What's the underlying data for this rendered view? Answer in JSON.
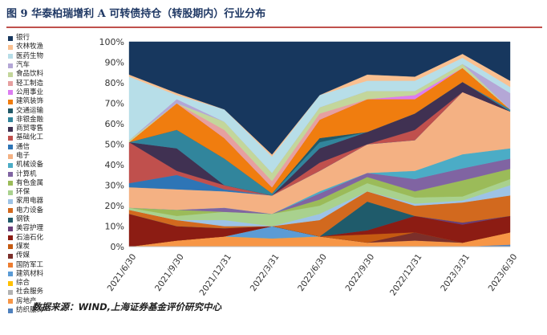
{
  "figure": {
    "title": "图 9 华泰柏瑞增利 A 可转债持仓（转股期内）行业分布",
    "source": "数据来源：WIND,上海证券基金评价研究中心"
  },
  "colors": {
    "title": "#1f3864",
    "rule": "#c0504d"
  },
  "chart_data": {
    "type": "area",
    "stacked": true,
    "normalized": true,
    "x": [
      "2021/6/30",
      "2021/9/30",
      "2021/12/31",
      "2022/3/31",
      "2022/6/30",
      "2022/9/30",
      "2022/12/31",
      "2023/3/31",
      "2023/6/30"
    ],
    "ylim": [
      0,
      100
    ],
    "yticks": [
      "0%",
      "10%",
      "20%",
      "30%",
      "40%",
      "50%",
      "60%",
      "70%",
      "80%",
      "90%",
      "100%"
    ],
    "legend_position": "left",
    "grid": false,
    "series": [
      {
        "name": "纺织服饰",
        "color": "#4f81bd",
        "values": [
          0,
          0,
          0,
          0,
          0,
          0,
          0,
          0,
          1
        ]
      },
      {
        "name": "房地产",
        "color": "#f79646",
        "values": [
          0,
          3,
          5,
          4,
          5,
          2,
          3,
          2,
          6
        ]
      },
      {
        "name": "社会服务",
        "color": "#b2b2b2",
        "values": [
          0,
          0,
          0,
          0,
          0,
          0,
          0,
          0,
          0
        ]
      },
      {
        "name": "综合",
        "color": "#ffc000",
        "values": [
          0,
          0,
          0,
          0,
          0,
          0,
          0,
          0,
          0
        ]
      },
      {
        "name": "建筑材料",
        "color": "#5b9bd5",
        "values": [
          0,
          0,
          0,
          6,
          0,
          0,
          0,
          0,
          0
        ]
      },
      {
        "name": "国防军工",
        "color": "#ed7d31",
        "values": [
          0,
          0,
          0,
          0,
          0,
          0,
          0,
          0,
          0
        ]
      },
      {
        "name": "传媒",
        "color": "#7b2f2a",
        "values": [
          0,
          0,
          0,
          0,
          0,
          0,
          4,
          0,
          0
        ]
      },
      {
        "name": "煤炭",
        "color": "#c55a11",
        "values": [
          0,
          0,
          0,
          0,
          0,
          4,
          0,
          0,
          0
        ]
      },
      {
        "name": "石油石化",
        "color": "#8c1c13",
        "values": [
          16,
          7,
          4,
          0,
          0,
          2,
          8,
          9,
          8
        ]
      },
      {
        "name": "美容护理",
        "color": "#6a3d7a",
        "values": [
          0,
          0,
          0,
          0,
          0,
          0,
          0,
          1,
          0
        ]
      },
      {
        "name": "钢铁",
        "color": "#1f5b6b",
        "values": [
          0,
          0,
          0,
          0,
          0,
          14,
          0,
          0,
          0
        ]
      },
      {
        "name": "电力设备",
        "color": "#d2691e",
        "values": [
          2,
          3,
          1,
          0,
          8,
          5,
          5,
          10,
          10
        ]
      },
      {
        "name": "家用电器",
        "color": "#9dc3e6",
        "values": [
          0,
          0,
          3,
          0,
          3,
          0,
          1,
          1,
          5
        ]
      },
      {
        "name": "环保",
        "color": "#a9d18e",
        "values": [
          1,
          2,
          4,
          6,
          4,
          4,
          3,
          2,
          3
        ]
      },
      {
        "name": "有色金属",
        "color": "#9bbb59",
        "values": [
          0,
          3,
          0,
          0,
          3,
          3,
          3,
          8,
          5
        ]
      },
      {
        "name": "计算机",
        "color": "#8064a2",
        "values": [
          0,
          0,
          2,
          0,
          3,
          2,
          6,
          6,
          5
        ]
      },
      {
        "name": "机械设备",
        "color": "#4bacc6",
        "values": [
          0,
          0,
          0,
          0,
          1,
          0,
          4,
          7,
          5
        ]
      },
      {
        "name": "电子",
        "color": "#f4b183",
        "values": [
          10,
          10,
          8,
          9,
          10,
          14,
          15,
          31,
          18
        ]
      },
      {
        "name": "通信",
        "color": "#2e75b6",
        "values": [
          2,
          7,
          1,
          0,
          0,
          0,
          0,
          0,
          0
        ]
      },
      {
        "name": "基础化工",
        "color": "#c0504d",
        "values": [
          20,
          2,
          2,
          0,
          4,
          0,
          5,
          0,
          0
        ]
      },
      {
        "name": "商贸零售",
        "color": "#403152",
        "values": [
          0,
          11,
          0,
          0,
          7,
          6,
          8,
          5,
          0
        ]
      },
      {
        "name": "非银金融",
        "color": "#31859c",
        "values": [
          0,
          9,
          13,
          1,
          3,
          0,
          0,
          0,
          1
        ]
      },
      {
        "name": "交通运输",
        "color": "#215968",
        "values": [
          0,
          0,
          0,
          0,
          2,
          0,
          0,
          0,
          0
        ]
      },
      {
        "name": "建筑装饰",
        "color": "#f07d0f",
        "values": [
          0,
          13,
          10,
          3,
          9,
          16,
          7,
          7,
          0
        ]
      },
      {
        "name": "公用事业",
        "color": "#dc7df0",
        "values": [
          0,
          0,
          0,
          0,
          0,
          0,
          2,
          0,
          0
        ]
      },
      {
        "name": "轻工制造",
        "color": "#e6a0a0",
        "values": [
          0,
          0,
          4,
          3,
          3,
          0,
          0,
          0,
          0
        ]
      },
      {
        "name": "食品饮料",
        "color": "#c3d69b",
        "values": [
          1,
          0,
          4,
          4,
          3,
          4,
          2,
          2,
          0
        ]
      },
      {
        "name": "汽车",
        "color": "#b4a7d6",
        "values": [
          0,
          2,
          0,
          0,
          0,
          0,
          0,
          0,
          8
        ]
      },
      {
        "name": "医药生物",
        "color": "#b7dee8",
        "values": [
          31,
          2,
          6,
          8,
          6,
          5,
          5,
          3,
          3
        ]
      },
      {
        "name": "农林牧渔",
        "color": "#fac090",
        "values": [
          1,
          1,
          0,
          1,
          0,
          3,
          2,
          2,
          3
        ]
      },
      {
        "name": "银行",
        "color": "#17375e",
        "values": [
          16,
          25,
          33,
          55,
          26,
          16,
          17,
          6,
          19
        ]
      }
    ]
  }
}
